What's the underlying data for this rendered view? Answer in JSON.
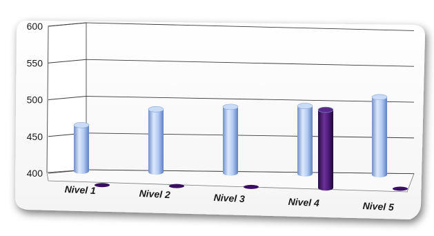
{
  "chart_data": {
    "type": "bar",
    "style": "3d-cylinder",
    "categories": [
      "Nivel 1",
      "Nivel 2",
      "Nivel 3",
      "Nivel 4",
      "Nivel 5"
    ],
    "series": [
      {
        "values": [
          462,
          485,
          490,
          493,
          507
        ],
        "color": "#a9c4f2"
      },
      {
        "values": [
          400,
          400,
          400,
          498,
          400
        ],
        "color": "#4b1a7a"
      }
    ],
    "ylim": [
      400,
      600
    ],
    "yticks": [
      400,
      450,
      500,
      550,
      600
    ],
    "grid": true,
    "legend": "none",
    "title": "",
    "xlabel": "",
    "ylabel": ""
  }
}
